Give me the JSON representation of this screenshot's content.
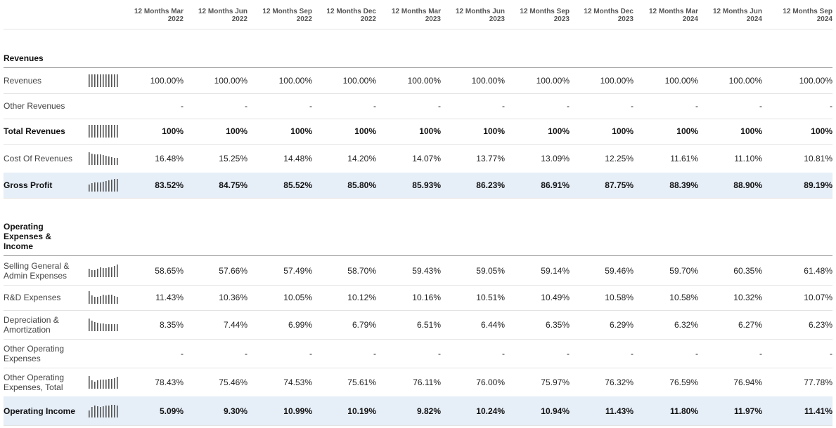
{
  "columns": [
    "12 Months Mar 2022",
    "12 Months Jun 2022",
    "12 Months Sep 2022",
    "12 Months Dec 2022",
    "12 Months Mar 2023",
    "12 Months Jun 2023",
    "12 Months Sep 2023",
    "12 Months Dec 2023",
    "12 Months Mar 2024",
    "12 Months Jun 2024",
    "12 Months Sep 2024"
  ],
  "sections": [
    {
      "title": "Revenues",
      "rows": [
        {
          "label": "Revenues",
          "bold": false,
          "highlight": false,
          "spark": true,
          "values": [
            "100.00%",
            "100.00%",
            "100.00%",
            "100.00%",
            "100.00%",
            "100.00%",
            "100.00%",
            "100.00%",
            "100.00%",
            "100.00%",
            "100.00%"
          ],
          "spark_values": [
            100,
            100,
            100,
            100,
            100,
            100,
            100,
            100,
            100,
            100,
            100
          ]
        },
        {
          "label": "Other Revenues",
          "bold": false,
          "highlight": false,
          "spark": false,
          "values": [
            "-",
            "-",
            "-",
            "-",
            "-",
            "-",
            "-",
            "-",
            "-",
            "-",
            "-"
          ]
        },
        {
          "label": "Total Revenues",
          "bold": true,
          "highlight": false,
          "spark": true,
          "values": [
            "100%",
            "100%",
            "100%",
            "100%",
            "100%",
            "100%",
            "100%",
            "100%",
            "100%",
            "100%",
            "100%"
          ],
          "spark_values": [
            100,
            100,
            100,
            100,
            100,
            100,
            100,
            100,
            100,
            100,
            100
          ]
        },
        {
          "label": "Cost Of Revenues",
          "bold": false,
          "highlight": false,
          "spark": true,
          "values": [
            "16.48%",
            "15.25%",
            "14.48%",
            "14.20%",
            "14.07%",
            "13.77%",
            "13.09%",
            "12.25%",
            "11.61%",
            "11.10%",
            "10.81%"
          ],
          "spark_values": [
            16.48,
            15.25,
            14.48,
            14.2,
            14.07,
            13.77,
            13.09,
            12.25,
            11.61,
            11.1,
            10.81
          ]
        },
        {
          "label": "Gross Profit",
          "bold": true,
          "highlight": true,
          "spark": true,
          "values": [
            "83.52%",
            "84.75%",
            "85.52%",
            "85.80%",
            "85.93%",
            "86.23%",
            "86.91%",
            "87.75%",
            "88.39%",
            "88.90%",
            "89.19%"
          ],
          "spark_values": [
            83.52,
            84.75,
            85.52,
            85.8,
            85.93,
            86.23,
            86.91,
            87.75,
            88.39,
            88.9,
            89.19
          ]
        }
      ]
    },
    {
      "title": "Operating Expenses & Income",
      "rows": [
        {
          "label": "Selling General & Admin Expenses",
          "bold": false,
          "highlight": false,
          "spark": true,
          "values": [
            "58.65%",
            "57.66%",
            "57.49%",
            "58.70%",
            "59.43%",
            "59.05%",
            "59.14%",
            "59.46%",
            "59.70%",
            "60.35%",
            "61.48%"
          ],
          "spark_values": [
            58.65,
            57.66,
            57.49,
            58.7,
            59.43,
            59.05,
            59.14,
            59.46,
            59.7,
            60.35,
            61.48
          ]
        },
        {
          "label": "R&D Expenses",
          "bold": false,
          "highlight": false,
          "spark": true,
          "values": [
            "11.43%",
            "10.36%",
            "10.05%",
            "10.12%",
            "10.16%",
            "10.51%",
            "10.49%",
            "10.58%",
            "10.58%",
            "10.32%",
            "10.07%"
          ],
          "spark_values": [
            11.43,
            10.36,
            10.05,
            10.12,
            10.16,
            10.51,
            10.49,
            10.58,
            10.58,
            10.32,
            10.07
          ]
        },
        {
          "label": "Depreciation & Amortization",
          "bold": false,
          "highlight": false,
          "spark": true,
          "values": [
            "8.35%",
            "7.44%",
            "6.99%",
            "6.79%",
            "6.51%",
            "6.44%",
            "6.35%",
            "6.29%",
            "6.32%",
            "6.27%",
            "6.23%"
          ],
          "spark_values": [
            8.35,
            7.44,
            6.99,
            6.79,
            6.51,
            6.44,
            6.35,
            6.29,
            6.32,
            6.27,
            6.23
          ]
        },
        {
          "label": "Other Operating Expenses",
          "bold": false,
          "highlight": false,
          "spark": false,
          "values": [
            "-",
            "-",
            "-",
            "-",
            "-",
            "-",
            "-",
            "-",
            "-",
            "-",
            "-"
          ]
        },
        {
          "label": "Other Operating Expenses, Total",
          "bold": false,
          "highlight": false,
          "spark": true,
          "values": [
            "78.43%",
            "75.46%",
            "74.53%",
            "75.61%",
            "76.11%",
            "76.00%",
            "75.97%",
            "76.32%",
            "76.59%",
            "76.94%",
            "77.78%"
          ],
          "spark_values": [
            78.43,
            75.46,
            74.53,
            75.61,
            76.11,
            76.0,
            75.97,
            76.32,
            76.59,
            76.94,
            77.78
          ]
        },
        {
          "label": "Operating Income",
          "bold": true,
          "highlight": true,
          "spark": true,
          "values": [
            "5.09%",
            "9.30%",
            "10.99%",
            "10.19%",
            "9.82%",
            "10.24%",
            "10.94%",
            "11.43%",
            "11.80%",
            "11.97%",
            "11.41%"
          ],
          "spark_values": [
            5.09,
            9.3,
            10.99,
            10.19,
            9.82,
            10.24,
            10.94,
            11.43,
            11.8,
            11.97,
            11.41
          ]
        }
      ]
    }
  ],
  "colors": {
    "highlight_row": "#e6eef8",
    "spark_bar": "#555555",
    "header_text": "#555555"
  }
}
